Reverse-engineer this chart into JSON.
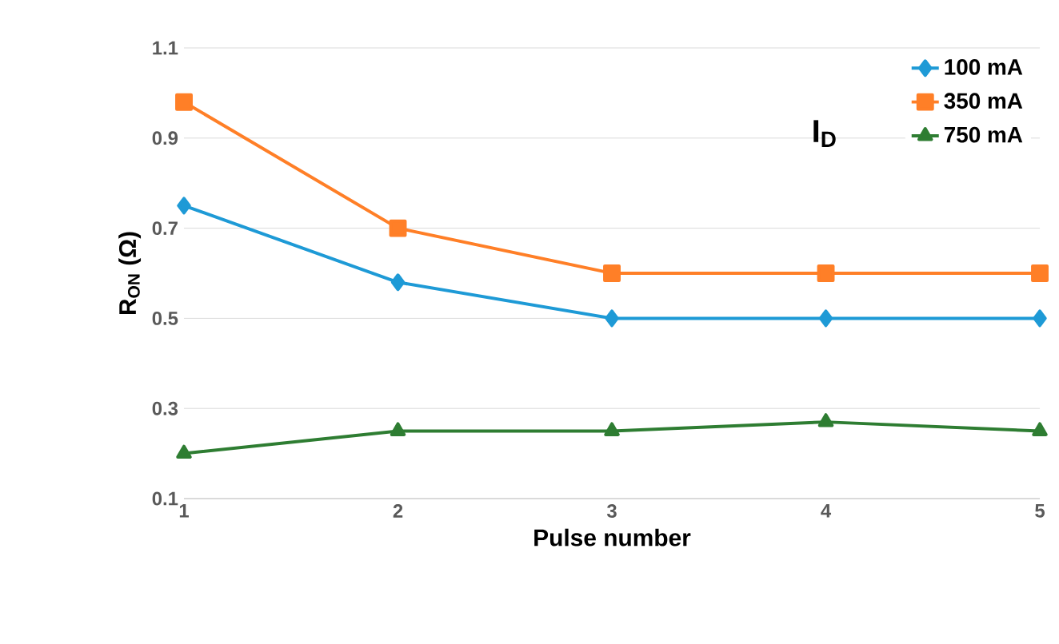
{
  "chart_data": {
    "type": "line",
    "xlabel": "Pulse number",
    "ylabel": "R$_{ON}$ (Ω)",
    "legend_title": "I$_{D}$",
    "x": [
      1,
      2,
      3,
      4,
      5
    ],
    "series": [
      {
        "name": "100 mA",
        "color": "#1e9ad6",
        "marker": "diamond",
        "values": [
          0.75,
          0.58,
          0.5,
          0.5,
          0.5
        ]
      },
      {
        "name": "350 mA",
        "color": "#ff7f27",
        "marker": "square",
        "values": [
          0.98,
          0.7,
          0.6,
          0.6,
          0.6
        ]
      },
      {
        "name": "750 mA",
        "color": "#2e7d32",
        "marker": "triangle",
        "values": [
          0.2,
          0.25,
          0.25,
          0.27,
          0.25
        ]
      }
    ],
    "xlim": [
      1,
      5
    ],
    "ylim": [
      0.1,
      1.1
    ],
    "xticks": [
      1,
      2,
      3,
      4,
      5
    ],
    "yticks": [
      0.1,
      0.3,
      0.5,
      0.7,
      0.9,
      1.1
    ],
    "grid": "y",
    "legend": "top right",
    "line_style": "solid"
  }
}
